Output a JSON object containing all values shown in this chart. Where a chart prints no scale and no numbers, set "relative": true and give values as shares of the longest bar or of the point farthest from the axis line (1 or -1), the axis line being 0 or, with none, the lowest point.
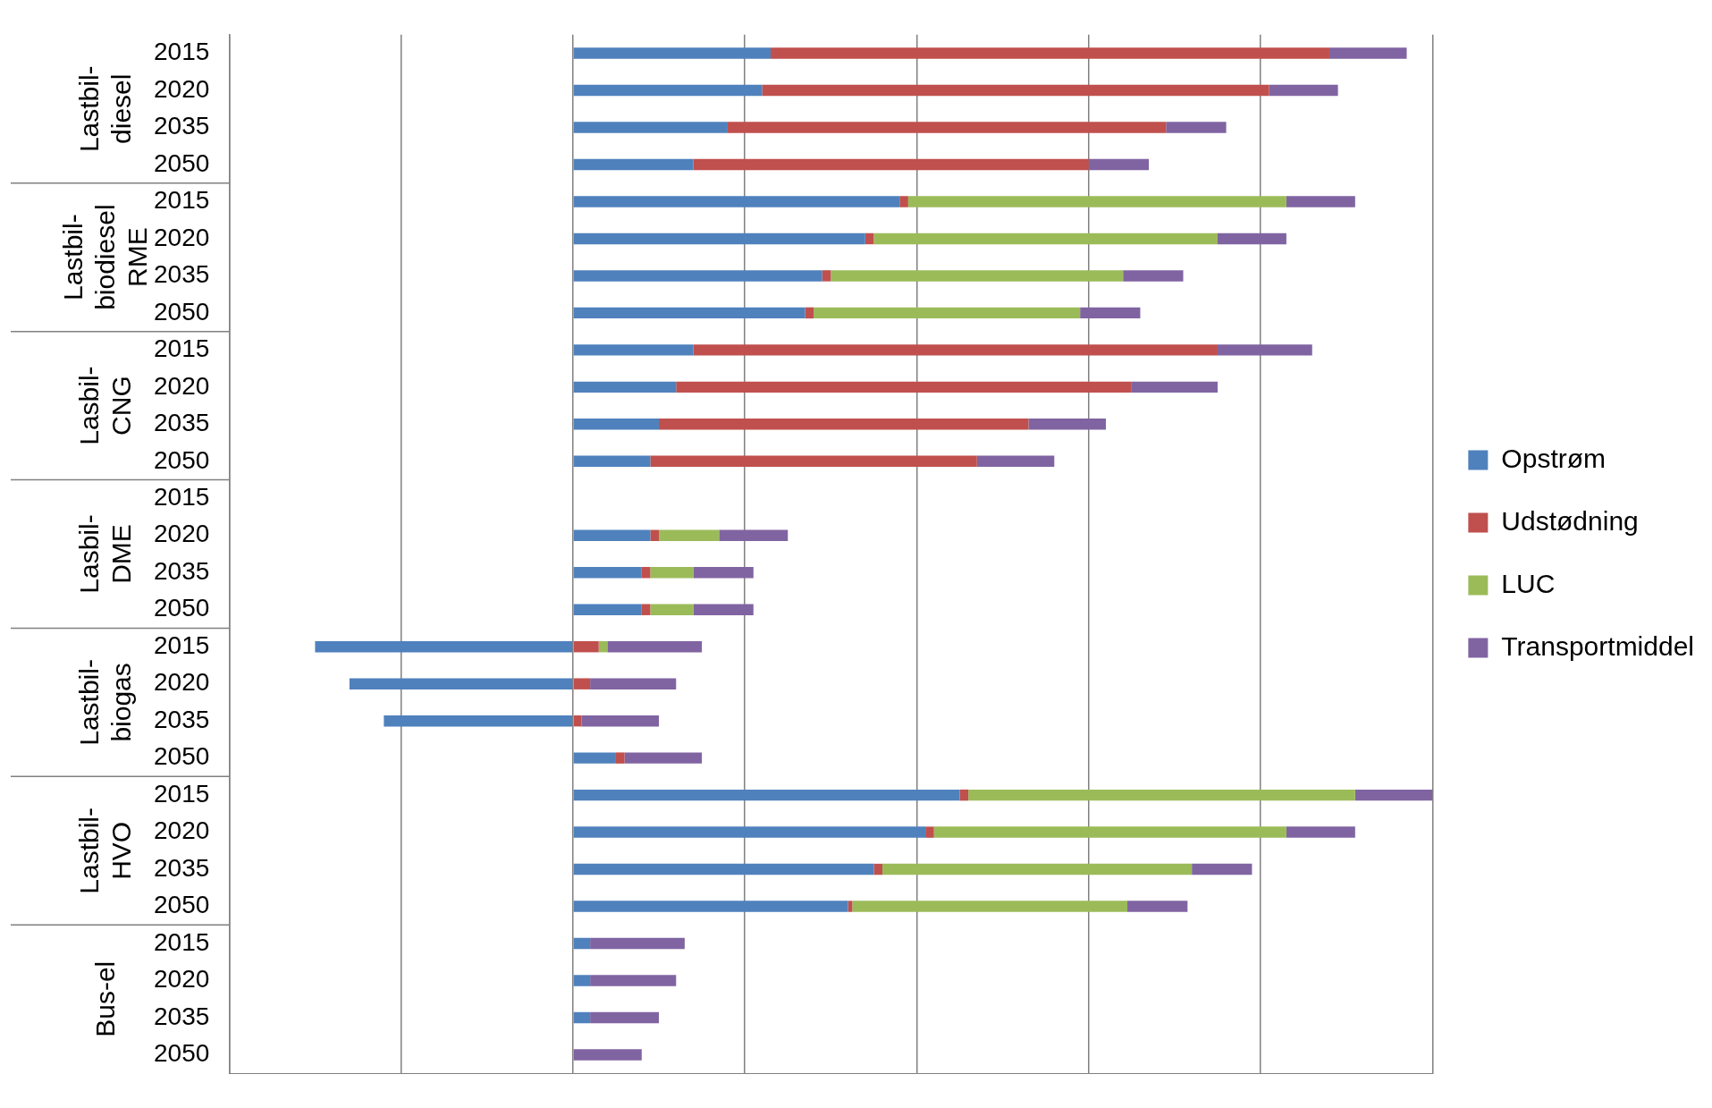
{
  "chart_data": {
    "type": "bar",
    "orientation": "horizontal",
    "stacked": true,
    "relative": true,
    "grid": "x",
    "legend": "right",
    "categories": [
      "2015",
      "2020",
      "2035",
      "2050",
      "2015",
      "2020",
      "2035",
      "2050",
      "2015",
      "2020",
      "2035",
      "2050",
      "2015",
      "2020",
      "2035",
      "2050",
      "2015",
      "2020",
      "2035",
      "2050",
      "2015",
      "2020",
      "2035",
      "2050",
      "2015",
      "2020",
      "2035",
      "2050"
    ],
    "annotations": [
      "Lastbil-diesel",
      "Lastbil-biodiesel RME",
      "Lasbil-CNG",
      "Lasbil-DME",
      "Lastbil-biogas",
      "Lastbil-HVO",
      "Bus-el"
    ],
    "series": [
      {
        "name": "Opstrøm",
        "color": "#4f81bd",
        "values": [
          0.23,
          0.22,
          0.18,
          0.14,
          0.38,
          0.34,
          0.29,
          0.27,
          0.14,
          0.12,
          0.1,
          0.09,
          null,
          0.09,
          0.08,
          0.08,
          -0.3,
          -0.26,
          -0.22,
          0.05,
          0.45,
          0.41,
          0.35,
          0.32,
          0.02,
          0.02,
          0.02,
          null
        ]
      },
      {
        "name": "Udstødning",
        "color": "#c0504d",
        "values": [
          0.65,
          0.59,
          0.51,
          0.46,
          0.01,
          0.01,
          0.01,
          0.01,
          0.61,
          0.53,
          0.43,
          0.38,
          null,
          0.01,
          0.01,
          0.01,
          0.03,
          0.02,
          0.01,
          0.01,
          0.01,
          0.01,
          0.01,
          0.005,
          null,
          null,
          null,
          null
        ]
      },
      {
        "name": "LUC",
        "color": "#9bbb59",
        "values": [
          null,
          null,
          null,
          null,
          0.44,
          0.4,
          0.34,
          0.31,
          null,
          null,
          null,
          null,
          null,
          0.07,
          0.05,
          0.05,
          0.01,
          null,
          null,
          null,
          0.45,
          0.41,
          0.36,
          0.32,
          null,
          null,
          null,
          null
        ]
      },
      {
        "name": "Transportmiddel",
        "color": "#8064a2",
        "values": [
          0.09,
          0.08,
          0.07,
          0.07,
          0.08,
          0.08,
          0.07,
          0.07,
          0.11,
          0.1,
          0.09,
          0.09,
          null,
          0.08,
          0.07,
          0.07,
          0.11,
          0.1,
          0.09,
          0.09,
          0.09,
          0.08,
          0.07,
          0.07,
          0.11,
          0.1,
          0.08,
          0.08
        ]
      }
    ]
  }
}
